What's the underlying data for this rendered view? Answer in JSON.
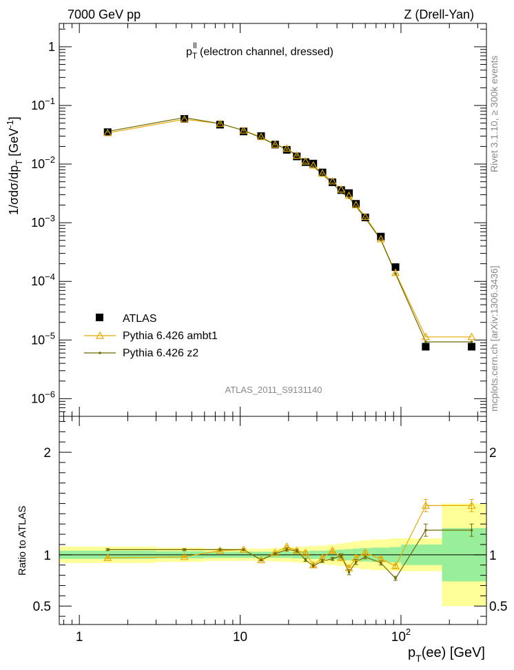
{
  "header": {
    "left": "7000 GeV pp",
    "right": "Z (Drell-Yan)"
  },
  "side_labels": {
    "rivet": "Rivet 3.1.10, ≥ 300k events",
    "mcplots": "mcplots.cern.ch [arXiv:1306.3436]"
  },
  "colors": {
    "atlas": "#000000",
    "ambt1": "#e8a800",
    "z2": "#6b6b00",
    "band_inner": "#99ee99",
    "band_outer": "#ffff99"
  },
  "chart_data": [
    {
      "type": "scatter",
      "panel": "main",
      "title_main": "p",
      "title_sup": "ll",
      "title_sub": "T",
      "title_rest": " (electron channel, dressed)",
      "ylabel": "1/σdσ/dp",
      "ylabel_sub": "T",
      "ylabel_unit": " [GeV",
      "ylabel_unit_sup": "-1",
      "ylabel_unit_end": "]",
      "yscale": "log",
      "ylim": [
        5e-07,
        2.5
      ],
      "xscale": "log",
      "xlim": [
        0.75,
        340
      ],
      "analysis_id": "ATLAS_2011_S9131140",
      "y_tick_labels": [
        {
          "v": 1,
          "m": "1",
          "e": ""
        },
        {
          "v": 0.1,
          "m": "10",
          "e": "−1"
        },
        {
          "v": 0.01,
          "m": "10",
          "e": "−2"
        },
        {
          "v": 0.001,
          "m": "10",
          "e": "−3"
        },
        {
          "v": 0.0001,
          "m": "10",
          "e": "−4"
        },
        {
          "v": 1e-05,
          "m": "10",
          "e": "−5"
        },
        {
          "v": 1e-06,
          "m": "10",
          "e": "−6"
        }
      ],
      "legend": [
        "ATLAS",
        "Pythia 6.426 ambt1",
        "Pythia 6.426 z2"
      ],
      "series": [
        {
          "name": "ATLAS",
          "marker": "square",
          "x": [
            1.5,
            4.5,
            7.5,
            10.5,
            13.5,
            16.5,
            19.5,
            22.5,
            25.5,
            28.5,
            32.5,
            37.5,
            42.5,
            47.5,
            52.5,
            60,
            75,
            92.5,
            142.5,
            275
          ],
          "y": [
            0.035,
            0.059,
            0.047,
            0.036,
            0.03,
            0.0215,
            0.0175,
            0.0135,
            0.0108,
            0.0102,
            0.0072,
            0.0049,
            0.0036,
            0.0032,
            0.0021,
            0.00123,
            0.00058,
            0.000175,
            7.7e-06,
            7.7e-06
          ]
        },
        {
          "name": "Pythia 6.426 ambt1",
          "marker": "triangle",
          "x": [
            1.5,
            4.5,
            7.5,
            10.5,
            13.5,
            16.5,
            19.5,
            22.5,
            25.5,
            28.5,
            32.5,
            37.5,
            42.5,
            47.5,
            52.5,
            60,
            75,
            92.5,
            142.5,
            275
          ],
          "y": [
            0.034,
            0.058,
            0.049,
            0.0375,
            0.029,
            0.0215,
            0.0185,
            0.014,
            0.0111,
            0.0095,
            0.0069,
            0.0051,
            0.0037,
            0.0029,
            0.002,
            0.00126,
            0.000525,
            0.00014,
            1.13e-05,
            1.13e-05
          ]
        },
        {
          "name": "Pythia 6.426 z2",
          "marker": "dot",
          "x": [
            1.5,
            4.5,
            7.5,
            10.5,
            13.5,
            16.5,
            19.5,
            22.5,
            25.5,
            28.5,
            32.5,
            37.5,
            42.5,
            47.5,
            52.5,
            60,
            75,
            92.5,
            142.5,
            275
          ],
          "y": [
            0.036,
            0.062,
            0.049,
            0.0375,
            0.028,
            0.0215,
            0.018,
            0.014,
            0.0103,
            0.0091,
            0.0067,
            0.0047,
            0.0033,
            0.0027,
            0.0019,
            0.0012,
            0.00051,
            0.000135,
            9.3e-06,
            9.3e-06
          ]
        }
      ]
    },
    {
      "type": "line",
      "panel": "ratio",
      "ylabel": "Ratio to ATLAS",
      "xlabel_main": "p",
      "xlabel_sub": "T",
      "xlabel_rest": "(ee) [GeV]",
      "ylim": [
        0.32,
        2.35
      ],
      "xscale": "log",
      "xlim": [
        0.75,
        340
      ],
      "y_ticks": [
        0.5,
        1,
        2
      ],
      "y_tick_labels": [
        "0.5",
        "1",
        "2"
      ],
      "x_tick_labels": [
        {
          "v": 1,
          "m": "1",
          "e": ""
        },
        {
          "v": 10,
          "m": "10",
          "e": ""
        },
        {
          "v": 100,
          "m": "10",
          "e": "2"
        }
      ],
      "bands": [
        {
          "x0": 0.75,
          "x1": 3,
          "inner": 0.04,
          "outer": 0.08
        },
        {
          "x0": 3,
          "x1": 6,
          "inner": 0.035,
          "outer": 0.07
        },
        {
          "x0": 6,
          "x1": 9,
          "inner": 0.03,
          "outer": 0.06
        },
        {
          "x0": 9,
          "x1": 12,
          "inner": 0.03,
          "outer": 0.06
        },
        {
          "x0": 12,
          "x1": 15,
          "inner": 0.03,
          "outer": 0.06
        },
        {
          "x0": 15,
          "x1": 18,
          "inner": 0.03,
          "outer": 0.065
        },
        {
          "x0": 18,
          "x1": 21,
          "inner": 0.03,
          "outer": 0.07
        },
        {
          "x0": 21,
          "x1": 24,
          "inner": 0.035,
          "outer": 0.075
        },
        {
          "x0": 24,
          "x1": 27,
          "inner": 0.035,
          "outer": 0.08
        },
        {
          "x0": 27,
          "x1": 30,
          "inner": 0.04,
          "outer": 0.085
        },
        {
          "x0": 30,
          "x1": 35,
          "inner": 0.04,
          "outer": 0.09
        },
        {
          "x0": 35,
          "x1": 40,
          "inner": 0.045,
          "outer": 0.1
        },
        {
          "x0": 40,
          "x1": 45,
          "inner": 0.05,
          "outer": 0.11
        },
        {
          "x0": 45,
          "x1": 50,
          "inner": 0.055,
          "outer": 0.12
        },
        {
          "x0": 50,
          "x1": 55,
          "inner": 0.06,
          "outer": 0.13
        },
        {
          "x0": 55,
          "x1": 65,
          "inner": 0.065,
          "outer": 0.14
        },
        {
          "x0": 65,
          "x1": 85,
          "inner": 0.07,
          "outer": 0.15
        },
        {
          "x0": 85,
          "x1": 100,
          "inner": 0.075,
          "outer": 0.16
        },
        {
          "x0": 100,
          "x1": 180,
          "inner": 0.1,
          "outer": 0.16
        },
        {
          "x0": 180,
          "x1": 340,
          "inner": 0.26,
          "outer": 0.5
        }
      ],
      "series": [
        {
          "name": "Pythia 6.426 ambt1",
          "x": [
            1.5,
            4.5,
            7.5,
            10.5,
            13.5,
            16.5,
            19.5,
            22.5,
            25.5,
            28.5,
            32.5,
            37.5,
            42.5,
            47.5,
            52.5,
            60,
            75,
            92.5,
            142.5,
            275
          ],
          "y": [
            0.97,
            0.98,
            1.04,
            1.05,
            0.95,
            1.02,
            1.08,
            1.04,
            1.02,
            0.9,
            0.97,
            1.04,
            0.97,
            0.87,
            0.97,
            1.02,
            0.96,
            0.89,
            1.48,
            1.48
          ],
          "err": [
            0.01,
            0.01,
            0.01,
            0.01,
            0.01,
            0.01,
            0.01,
            0.01,
            0.015,
            0.015,
            0.015,
            0.015,
            0.02,
            0.025,
            0.025,
            0.02,
            0.02,
            0.02,
            0.06,
            0.06
          ]
        },
        {
          "name": "Pythia 6.426 z2",
          "x": [
            1.5,
            4.5,
            7.5,
            10.5,
            13.5,
            16.5,
            19.5,
            22.5,
            25.5,
            28.5,
            32.5,
            37.5,
            42.5,
            47.5,
            52.5,
            60,
            75,
            92.5,
            142.5,
            275
          ],
          "y": [
            1.05,
            1.05,
            1.05,
            1.05,
            0.95,
            1.01,
            1.05,
            1.04,
            0.95,
            0.89,
            0.94,
            0.96,
            0.99,
            0.83,
            0.93,
            0.98,
            0.92,
            0.77,
            1.24,
            1.24
          ],
          "err": [
            0.01,
            0.01,
            0.01,
            0.01,
            0.01,
            0.01,
            0.015,
            0.015,
            0.015,
            0.015,
            0.015,
            0.015,
            0.02,
            0.025,
            0.025,
            0.02,
            0.02,
            0.02,
            0.06,
            0.06
          ]
        }
      ]
    }
  ]
}
